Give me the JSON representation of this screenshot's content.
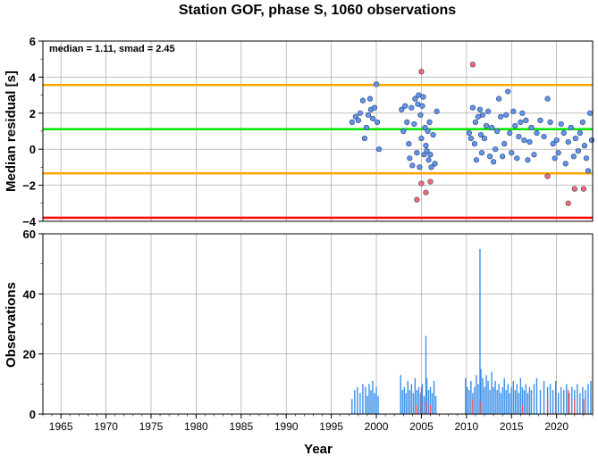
{
  "chart_data": [
    {
      "type": "scatter",
      "title": "Station GOF, phase S, 1060 observations",
      "annotation": "median = 1.11, smad = 2.45",
      "ylabel": "Median residual [s]",
      "xlim": [
        1963,
        2024
      ],
      "ylim": [
        -4,
        6
      ],
      "y_ticks": [
        "6",
        "4",
        "2",
        "0",
        "−2",
        "−4"
      ],
      "lines": [
        {
          "y": 3.56,
          "color": "#ffa500"
        },
        {
          "y": 1.11,
          "color": "#00e600"
        },
        {
          "y": -1.34,
          "color": "#ffa500"
        },
        {
          "y": -3.8,
          "color": "#ff0000"
        }
      ],
      "series": [
        {
          "color": "#6495ed",
          "points": [
            [
              1997.3,
              1.5
            ],
            [
              1997.7,
              1.8
            ],
            [
              1998.0,
              1.6
            ],
            [
              1998.2,
              2.0
            ],
            [
              1998.5,
              2.7
            ],
            [
              1998.7,
              0.6
            ],
            [
              1998.9,
              1.2
            ],
            [
              1999.1,
              1.9
            ],
            [
              1999.3,
              2.8
            ],
            [
              1999.4,
              2.2
            ],
            [
              1999.6,
              1.7
            ],
            [
              1999.8,
              2.3
            ],
            [
              2000.0,
              3.6
            ],
            [
              2000.1,
              1.5
            ],
            [
              2000.3,
              0.0
            ],
            [
              2002.8,
              2.2
            ],
            [
              2003.0,
              1.0
            ],
            [
              2003.2,
              2.4
            ],
            [
              2003.4,
              1.5
            ],
            [
              2003.6,
              0.3
            ],
            [
              2003.7,
              -0.5
            ],
            [
              2003.9,
              2.3
            ],
            [
              2004.0,
              -0.9
            ],
            [
              2004.2,
              1.4
            ],
            [
              2004.3,
              2.8
            ],
            [
              2004.5,
              -0.2
            ],
            [
              2004.6,
              2.5
            ],
            [
              2004.7,
              3.0
            ],
            [
              2004.8,
              -1.0
            ],
            [
              2004.9,
              1.9
            ],
            [
              2005.0,
              0.6
            ],
            [
              2005.1,
              2.4
            ],
            [
              2005.2,
              2.9
            ],
            [
              2005.3,
              -0.3
            ],
            [
              2005.4,
              1.2
            ],
            [
              2005.5,
              0.2
            ],
            [
              2005.6,
              -0.1
            ],
            [
              2005.7,
              1.0
            ],
            [
              2005.8,
              -0.6
            ],
            [
              2005.9,
              1.5
            ],
            [
              2006.0,
              -0.3
            ],
            [
              2006.1,
              -1.0
            ],
            [
              2006.3,
              0.8
            ],
            [
              2006.5,
              -0.8
            ],
            [
              2006.7,
              2.1
            ],
            [
              2010.3,
              0.9
            ],
            [
              2010.5,
              0.6
            ],
            [
              2010.7,
              2.3
            ],
            [
              2010.9,
              0.3
            ],
            [
              2011.0,
              1.5
            ],
            [
              2011.1,
              -0.6
            ],
            [
              2011.3,
              1.8
            ],
            [
              2011.5,
              2.2
            ],
            [
              2011.6,
              0.8
            ],
            [
              2011.7,
              -0.2
            ],
            [
              2011.8,
              1.9
            ],
            [
              2012.0,
              0.6
            ],
            [
              2012.2,
              1.3
            ],
            [
              2012.4,
              2.1
            ],
            [
              2012.6,
              -0.4
            ],
            [
              2012.8,
              1.2
            ],
            [
              2013.0,
              -0.7
            ],
            [
              2013.2,
              0.0
            ],
            [
              2013.4,
              1.0
            ],
            [
              2013.6,
              2.8
            ],
            [
              2013.8,
              1.8
            ],
            [
              2014.0,
              -0.4
            ],
            [
              2014.2,
              0.3
            ],
            [
              2014.4,
              1.9
            ],
            [
              2014.6,
              3.2
            ],
            [
              2014.8,
              0.9
            ],
            [
              2015.0,
              -0.2
            ],
            [
              2015.2,
              2.1
            ],
            [
              2015.4,
              1.3
            ],
            [
              2015.6,
              -0.5
            ],
            [
              2015.8,
              0.7
            ],
            [
              2016.0,
              1.5
            ],
            [
              2016.2,
              2.0
            ],
            [
              2016.4,
              0.5
            ],
            [
              2016.6,
              1.6
            ],
            [
              2016.8,
              -0.6
            ],
            [
              2017.0,
              0.4
            ],
            [
              2017.2,
              1.2
            ],
            [
              2017.5,
              -0.3
            ],
            [
              2017.8,
              0.9
            ],
            [
              2018.2,
              1.6
            ],
            [
              2018.6,
              0.7
            ],
            [
              2019.0,
              2.8
            ],
            [
              2019.3,
              1.5
            ],
            [
              2019.6,
              0.3
            ],
            [
              2019.8,
              -0.5
            ],
            [
              2020.0,
              0.5
            ],
            [
              2020.2,
              -0.2
            ],
            [
              2020.5,
              1.4
            ],
            [
              2020.8,
              0.9
            ],
            [
              2021.0,
              -0.8
            ],
            [
              2021.3,
              0.4
            ],
            [
              2021.6,
              1.2
            ],
            [
              2021.9,
              -0.4
            ],
            [
              2022.1,
              0.6
            ],
            [
              2022.4,
              -0.1
            ],
            [
              2022.6,
              0.9
            ],
            [
              2022.9,
              1.5
            ],
            [
              2023.1,
              0.2
            ],
            [
              2023.3,
              -0.5
            ],
            [
              2023.5,
              -1.2
            ],
            [
              2023.7,
              2.0
            ],
            [
              2023.9,
              0.5
            ]
          ]
        },
        {
          "color": "#ff6a6a",
          "points": [
            [
              2004.5,
              -2.8
            ],
            [
              2005.0,
              4.3
            ],
            [
              2005.0,
              -1.9
            ],
            [
              2005.5,
              -2.4
            ],
            [
              2006.0,
              -1.8
            ],
            [
              2010.7,
              4.7
            ],
            [
              2019.0,
              -1.5
            ],
            [
              2021.3,
              -3.0
            ],
            [
              2022.0,
              -2.2
            ],
            [
              2023.0,
              -2.2
            ]
          ]
        }
      ]
    },
    {
      "type": "bar",
      "ylabel": "Observations",
      "xlabel": "Year",
      "xlim": [
        1963,
        2024
      ],
      "ylim": [
        0,
        60
      ],
      "x_ticks": [
        "1965",
        "1970",
        "1975",
        "1980",
        "1985",
        "1990",
        "1995",
        "2000",
        "2005",
        "2010",
        "2015",
        "2020"
      ],
      "y_ticks": [
        "60",
        "40",
        "20",
        "0"
      ],
      "series": [
        {
          "color": "#3a8fe8",
          "values": [
            [
              1997.3,
              5
            ],
            [
              1997.6,
              8
            ],
            [
              1997.9,
              9
            ],
            [
              1998.2,
              7
            ],
            [
              1998.5,
              10
            ],
            [
              1998.8,
              9
            ],
            [
              1999.0,
              6
            ],
            [
              1999.2,
              10
            ],
            [
              1999.4,
              8
            ],
            [
              1999.6,
              11
            ],
            [
              1999.8,
              7
            ],
            [
              2000.0,
              9
            ],
            [
              2000.2,
              6
            ],
            [
              2002.7,
              13
            ],
            [
              2002.9,
              8
            ],
            [
              2003.1,
              9
            ],
            [
              2003.3,
              7
            ],
            [
              2003.5,
              11
            ],
            [
              2003.7,
              8
            ],
            [
              2003.9,
              10
            ],
            [
              2004.1,
              7
            ],
            [
              2004.3,
              12
            ],
            [
              2004.5,
              8
            ],
            [
              2004.7,
              9
            ],
            [
              2004.9,
              7
            ],
            [
              2005.1,
              10
            ],
            [
              2005.3,
              6
            ],
            [
              2005.5,
              26
            ],
            [
              2005.6,
              12
            ],
            [
              2005.8,
              8
            ],
            [
              2006.0,
              9
            ],
            [
              2006.2,
              7
            ],
            [
              2006.4,
              11
            ],
            [
              2006.6,
              6
            ],
            [
              2009.9,
              12
            ],
            [
              2010.1,
              9
            ],
            [
              2010.3,
              8
            ],
            [
              2010.5,
              11
            ],
            [
              2010.7,
              7
            ],
            [
              2010.9,
              9
            ],
            [
              2011.1,
              13
            ],
            [
              2011.3,
              10
            ],
            [
              2011.5,
              55
            ],
            [
              2011.6,
              15
            ],
            [
              2011.8,
              12
            ],
            [
              2012.0,
              9
            ],
            [
              2012.2,
              13
            ],
            [
              2012.4,
              11
            ],
            [
              2012.6,
              8
            ],
            [
              2012.8,
              14
            ],
            [
              2013.0,
              9
            ],
            [
              2013.2,
              11
            ],
            [
              2013.4,
              8
            ],
            [
              2013.6,
              10
            ],
            [
              2013.8,
              7
            ],
            [
              2014.0,
              9
            ],
            [
              2014.2,
              12
            ],
            [
              2014.4,
              8
            ],
            [
              2014.6,
              10
            ],
            [
              2014.8,
              7
            ],
            [
              2015.0,
              9
            ],
            [
              2015.2,
              11
            ],
            [
              2015.4,
              8
            ],
            [
              2015.6,
              10
            ],
            [
              2015.8,
              7
            ],
            [
              2016.0,
              12
            ],
            [
              2016.2,
              9
            ],
            [
              2016.4,
              8
            ],
            [
              2016.6,
              10
            ],
            [
              2016.8,
              7
            ],
            [
              2017.0,
              9
            ],
            [
              2017.2,
              8
            ],
            [
              2017.5,
              10
            ],
            [
              2017.8,
              12
            ],
            [
              2018.2,
              8
            ],
            [
              2018.6,
              11
            ],
            [
              2019.0,
              9
            ],
            [
              2019.3,
              10
            ],
            [
              2019.6,
              8
            ],
            [
              2019.9,
              11
            ],
            [
              2020.2,
              7
            ],
            [
              2020.5,
              9
            ],
            [
              2020.8,
              8
            ],
            [
              2021.1,
              10
            ],
            [
              2021.4,
              7
            ],
            [
              2021.7,
              9
            ],
            [
              2022.0,
              8
            ],
            [
              2022.3,
              10
            ],
            [
              2022.6,
              7
            ],
            [
              2022.9,
              9
            ],
            [
              2023.2,
              8
            ],
            [
              2023.5,
              10
            ],
            [
              2023.8,
              11
            ]
          ]
        },
        {
          "color": "#ff5050",
          "values": [
            [
              2004.5,
              3
            ],
            [
              2005.0,
              9
            ],
            [
              2005.5,
              4
            ],
            [
              2006.0,
              3
            ],
            [
              2010.7,
              5
            ],
            [
              2011.5,
              4
            ],
            [
              2016.2,
              3
            ],
            [
              2019.0,
              5
            ],
            [
              2021.3,
              8
            ],
            [
              2022.0,
              5
            ],
            [
              2023.0,
              5
            ]
          ]
        }
      ]
    }
  ]
}
